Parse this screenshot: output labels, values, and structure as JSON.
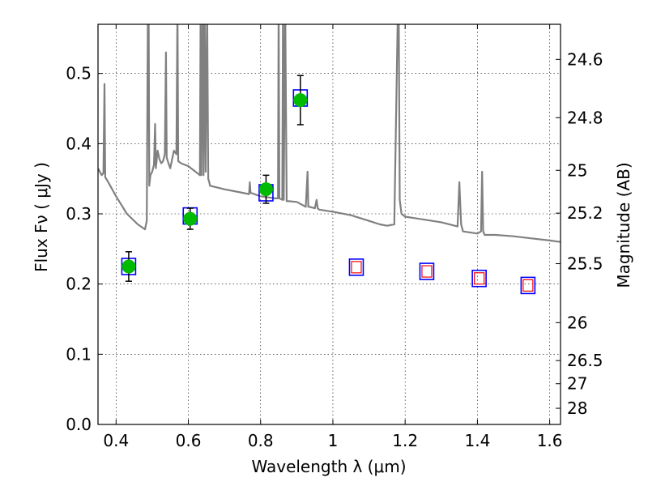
{
  "chart_data": {
    "type": "scatter",
    "title": "",
    "xlabel": "Wavelength  λ (μm)",
    "ylabel": "Flux  Fν  ( μJy )",
    "ylabel_right": "Magnitude (AB)",
    "xlim": [
      0.35,
      1.63
    ],
    "ylim": [
      0.0,
      0.57
    ],
    "grid": true,
    "x_ticks": [
      0.4,
      0.6,
      0.8,
      1.0,
      1.2,
      1.4,
      1.6
    ],
    "x_tick_labels": [
      "0.4",
      "0.6",
      "0.8",
      "1",
      "1.2",
      "1.4",
      "1.6"
    ],
    "y_ticks": [
      0.0,
      0.1,
      0.2,
      0.3,
      0.4,
      0.5
    ],
    "y_tick_labels": [
      "0.0",
      "0.1",
      "0.2",
      "0.3",
      "0.4",
      "0.5"
    ],
    "right_ticks": [
      {
        "label": "24.6",
        "flux": 0.52
      },
      {
        "label": "24.8",
        "flux": 0.437
      },
      {
        "label": "25",
        "flux": 0.362
      },
      {
        "label": "25.2",
        "flux": 0.301
      },
      {
        "label": "25.5",
        "flux": 0.229
      },
      {
        "label": "26",
        "flux": 0.145
      },
      {
        "label": "26.5",
        "flux": 0.091
      },
      {
        "label": "27",
        "flux": 0.058
      },
      {
        "label": "28",
        "flux": 0.023
      }
    ],
    "observed_points": {
      "color": "#00bb00",
      "x": [
        0.435,
        0.605,
        0.815,
        0.91
      ],
      "y": [
        0.225,
        0.293,
        0.335,
        0.462
      ],
      "yerr": [
        0.021,
        0.015,
        0.02,
        0.035
      ]
    },
    "model_points": {
      "color": "#0000ff",
      "x": [
        0.435,
        0.605,
        0.815,
        0.91,
        1.065,
        1.26,
        1.405,
        1.54
      ],
      "y": [
        0.225,
        0.297,
        0.33,
        0.465,
        0.224,
        0.218,
        0.208,
        0.198
      ]
    },
    "upper_limit_points": {
      "color": "#ff0000",
      "x": [
        1.065,
        1.26,
        1.405,
        1.54
      ],
      "y": [
        0.224,
        0.218,
        0.208,
        0.198
      ]
    },
    "sed_model": {
      "color": "#808080",
      "x": [
        0.35,
        0.36,
        0.365,
        0.368,
        0.37,
        0.375,
        0.4,
        0.43,
        0.46,
        0.48,
        0.485,
        0.488,
        0.49,
        0.492,
        0.495,
        0.5,
        0.505,
        0.508,
        0.51,
        0.515,
        0.52,
        0.525,
        0.53,
        0.535,
        0.538,
        0.54,
        0.545,
        0.55,
        0.56,
        0.567,
        0.57,
        0.572,
        0.58,
        0.6,
        0.62,
        0.632,
        0.634,
        0.636,
        0.64,
        0.642,
        0.645,
        0.648,
        0.652,
        0.655,
        0.658,
        0.66,
        0.7,
        0.75,
        0.768,
        0.77,
        0.772,
        0.8,
        0.84,
        0.848,
        0.85,
        0.852,
        0.86,
        0.862,
        0.864,
        0.868,
        0.872,
        0.878,
        0.9,
        0.925,
        0.93,
        0.932,
        0.935,
        0.95,
        0.955,
        0.958,
        0.962,
        1.0,
        1.05,
        1.1,
        1.13,
        1.15,
        1.17,
        1.18,
        1.182,
        1.185,
        1.19,
        1.2,
        1.25,
        1.3,
        1.345,
        1.35,
        1.355,
        1.36,
        1.4,
        1.41,
        1.413,
        1.416,
        1.42,
        1.45,
        1.5,
        1.55,
        1.6,
        1.63
      ],
      "y": [
        0.365,
        0.355,
        0.358,
        0.485,
        0.352,
        0.348,
        0.325,
        0.3,
        0.285,
        0.278,
        0.29,
        0.6,
        0.6,
        0.34,
        0.355,
        0.36,
        0.37,
        0.428,
        0.365,
        0.39,
        0.378,
        0.372,
        0.375,
        0.385,
        0.53,
        0.38,
        0.372,
        0.365,
        0.39,
        0.385,
        0.6,
        0.375,
        0.372,
        0.368,
        0.36,
        0.355,
        0.6,
        0.355,
        0.6,
        0.355,
        0.6,
        0.36,
        0.6,
        0.35,
        0.345,
        0.34,
        0.335,
        0.33,
        0.328,
        0.345,
        0.33,
        0.325,
        0.322,
        0.322,
        0.6,
        0.322,
        0.32,
        0.6,
        0.32,
        0.6,
        0.318,
        0.318,
        0.317,
        0.31,
        0.36,
        0.31,
        0.31,
        0.308,
        0.32,
        0.308,
        0.306,
        0.303,
        0.298,
        0.29,
        0.285,
        0.283,
        0.285,
        0.6,
        0.6,
        0.32,
        0.3,
        0.296,
        0.292,
        0.288,
        0.282,
        0.345,
        0.285,
        0.275,
        0.272,
        0.275,
        0.36,
        0.275,
        0.27,
        0.27,
        0.268,
        0.265,
        0.262,
        0.26
      ]
    }
  }
}
